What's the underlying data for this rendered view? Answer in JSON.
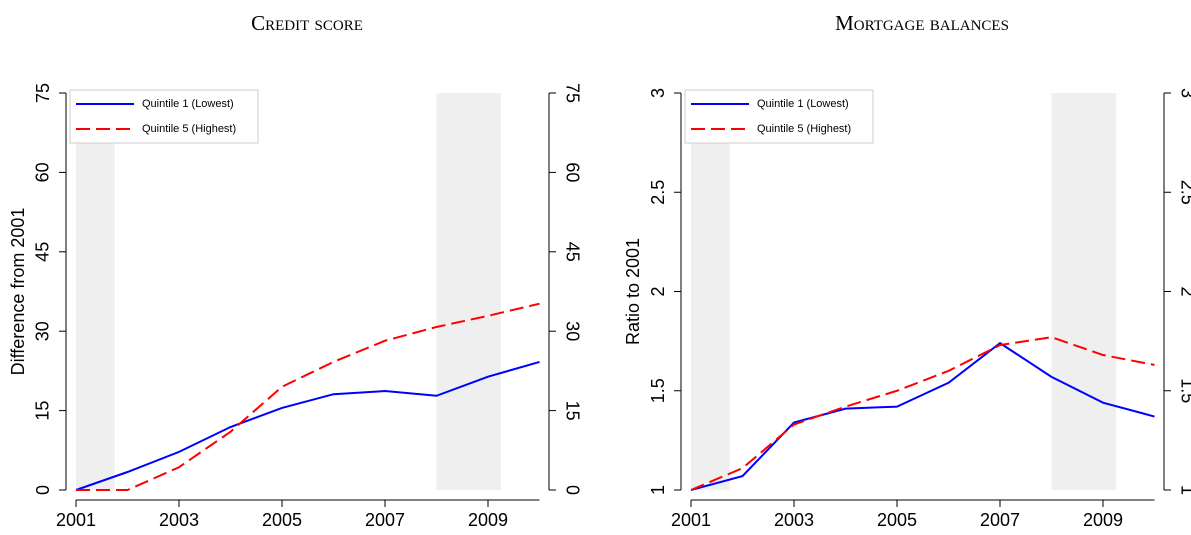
{
  "chart_data": [
    {
      "type": "line",
      "title": "Credit score",
      "ylabel": "Difference from 2001",
      "x": [
        2001,
        2002,
        2003,
        2004,
        2005,
        2006,
        2007,
        2008,
        2009,
        2010
      ],
      "xlim": [
        2001,
        2010
      ],
      "xticks": [
        2001,
        2003,
        2005,
        2007,
        2009
      ],
      "ylim": [
        0,
        75
      ],
      "yticks": [
        0,
        15,
        30,
        45,
        60,
        75
      ],
      "shaded_regions": [
        [
          2001,
          2001.75
        ],
        [
          2008,
          2009.25
        ]
      ],
      "legend": "upper left",
      "series": [
        {
          "name": "Quintile 1 (Lowest)",
          "color": "#0000ff",
          "dash": "solid",
          "values": [
            0,
            3.4,
            7.2,
            11.9,
            15.5,
            18.1,
            18.7,
            17.8,
            21.4,
            24.2
          ]
        },
        {
          "name": "Quintile 5 (Highest)",
          "color": "#ff0000",
          "dash": "dashed",
          "values": [
            0,
            0,
            4.3,
            11,
            19.5,
            24.2,
            28.2,
            30.8,
            32.9,
            35.2
          ]
        }
      ]
    },
    {
      "type": "line",
      "title": "Mortgage balances",
      "ylabel": "Ratio to 2001",
      "x": [
        2001,
        2002,
        2003,
        2004,
        2005,
        2006,
        2007,
        2008,
        2009,
        2010
      ],
      "xlim": [
        2001,
        2010
      ],
      "xticks": [
        2001,
        2003,
        2005,
        2007,
        2009
      ],
      "ylim": [
        1,
        3
      ],
      "yticks": [
        1,
        1.5,
        2,
        2.5,
        3
      ],
      "shaded_regions": [
        [
          2001,
          2001.75
        ],
        [
          2008,
          2009.25
        ]
      ],
      "legend": "upper left",
      "series": [
        {
          "name": "Quintile 1 (Lowest)",
          "color": "#0000ff",
          "dash": "solid",
          "values": [
            1,
            1.07,
            1.34,
            1.41,
            1.42,
            1.54,
            1.74,
            1.57,
            1.44,
            1.37
          ]
        },
        {
          "name": "Quintile 5 (Highest)",
          "color": "#ff0000",
          "dash": "dashed",
          "values": [
            1,
            1.11,
            1.33,
            1.42,
            1.5,
            1.6,
            1.73,
            1.77,
            1.68,
            1.63
          ]
        }
      ]
    }
  ]
}
